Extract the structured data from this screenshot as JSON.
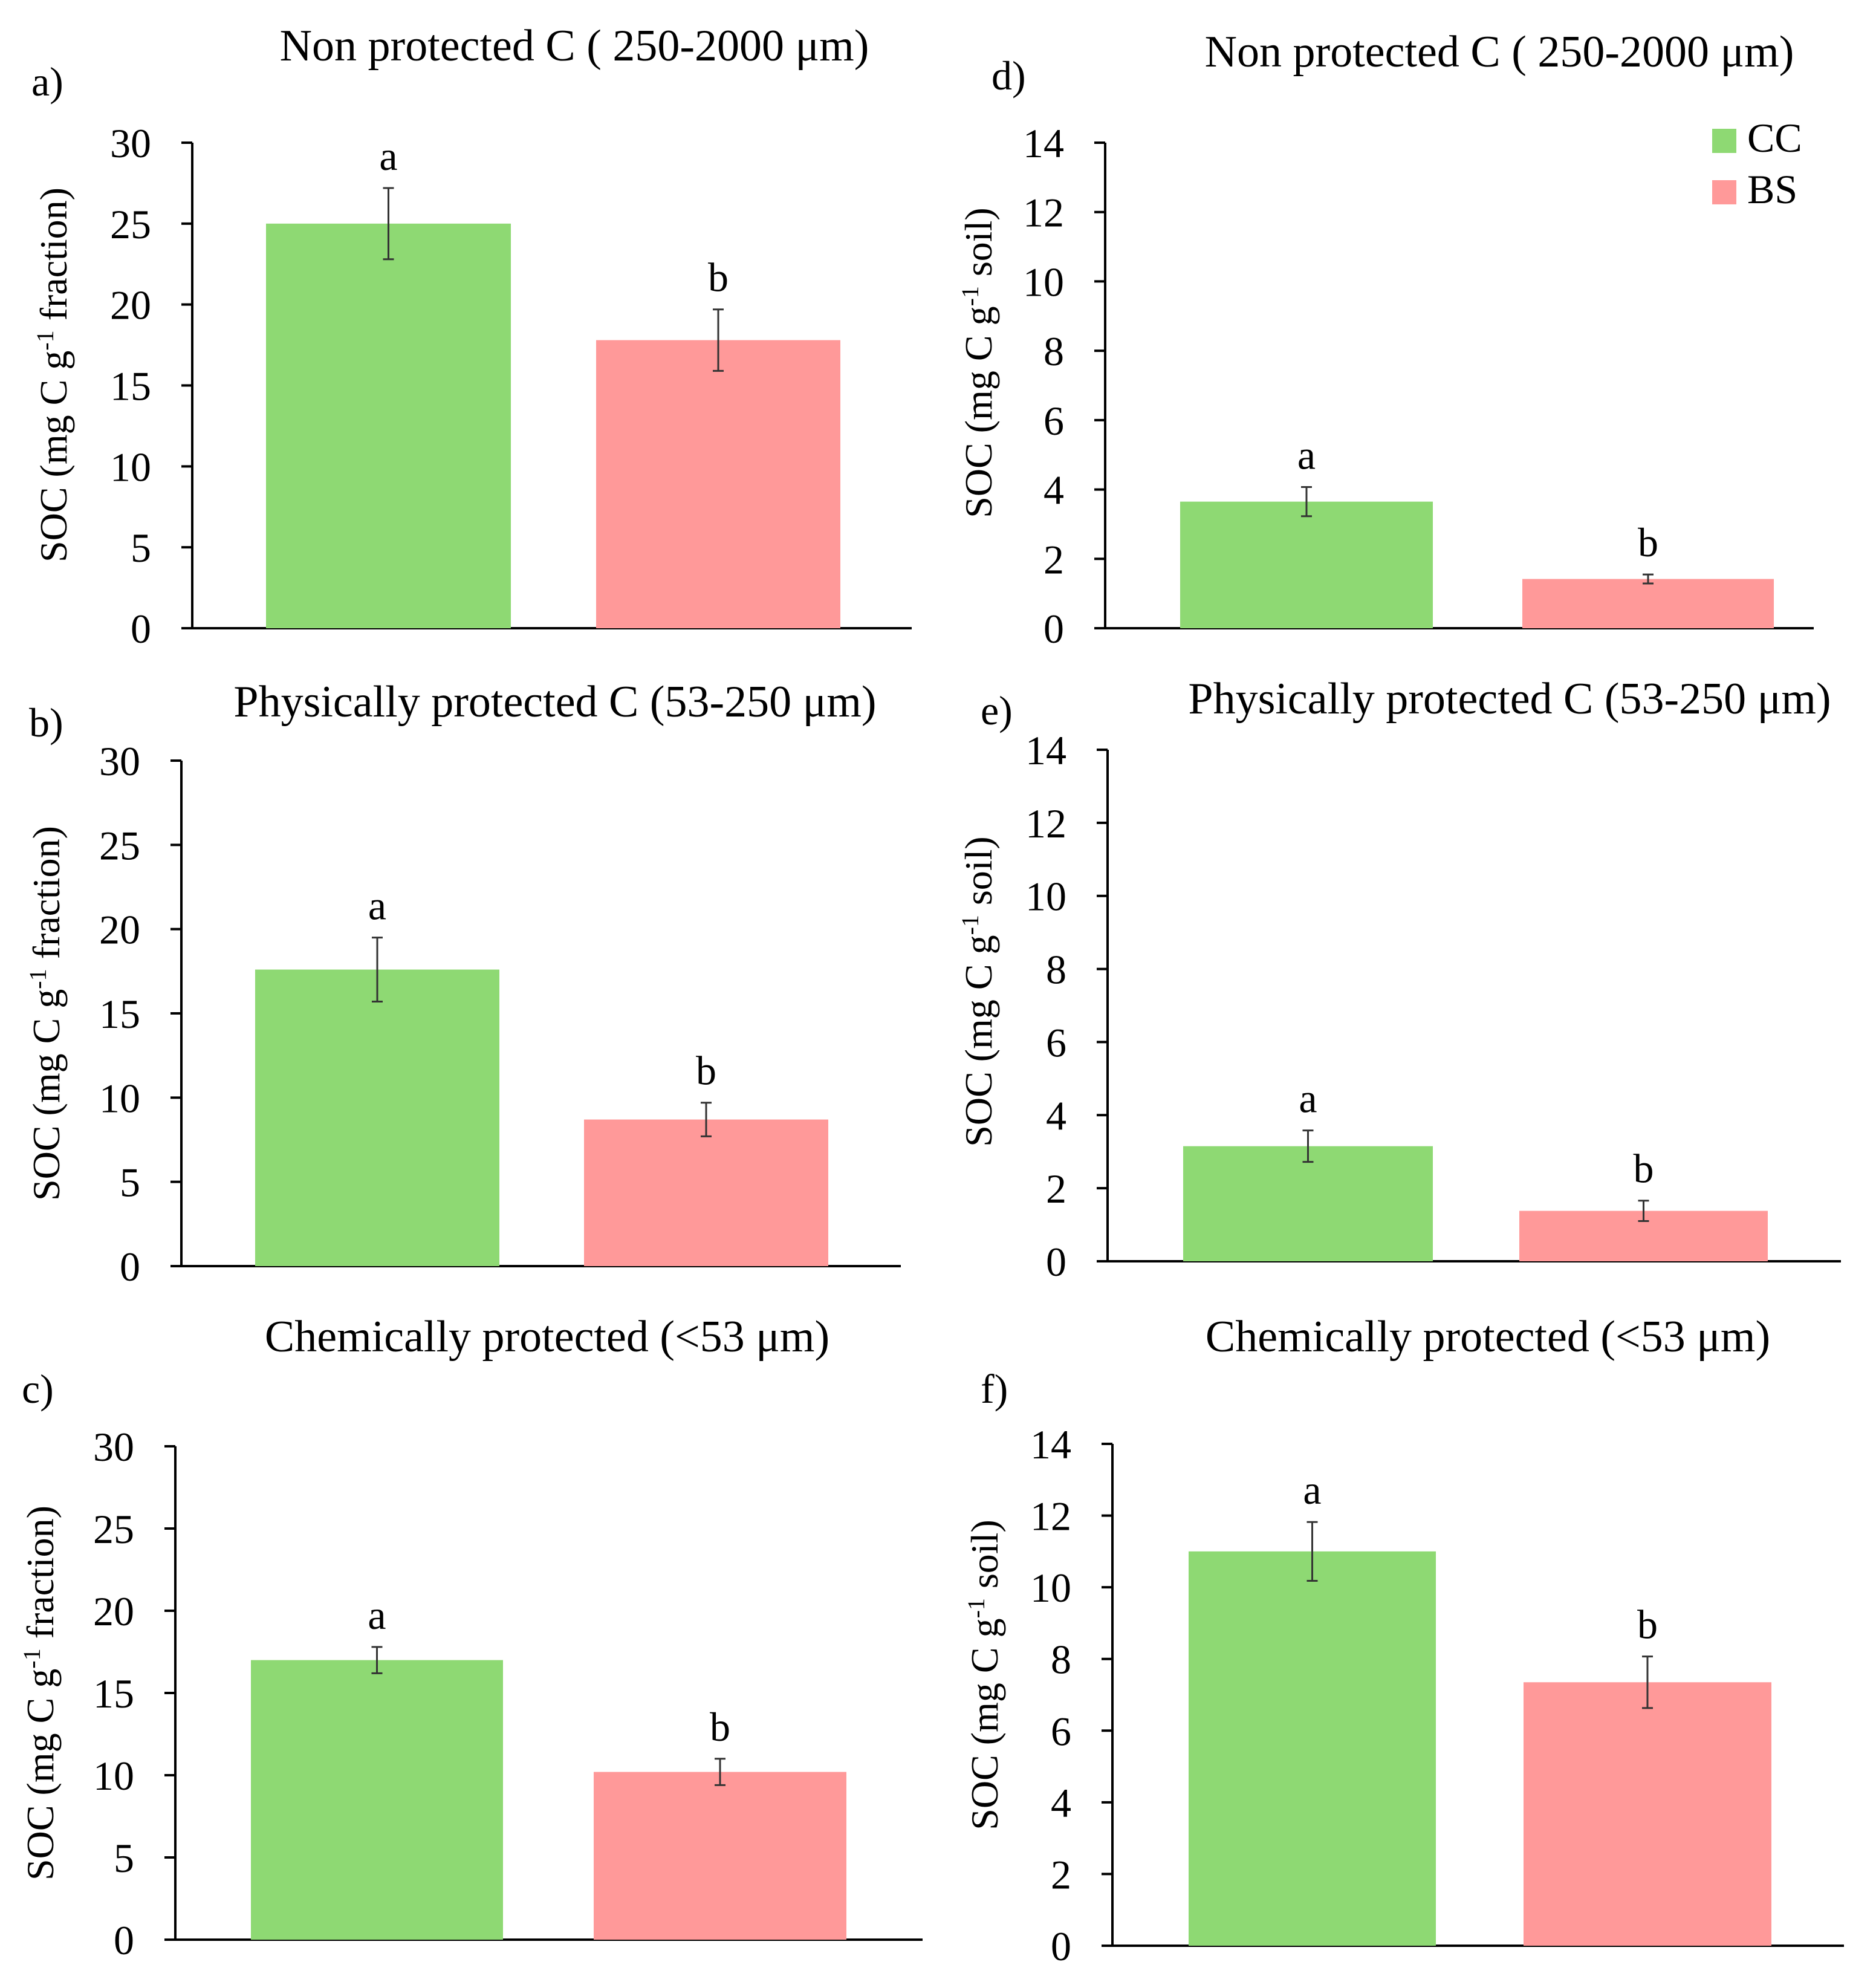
{
  "legend": {
    "position": "top-right",
    "entries": [
      {
        "label": "CC",
        "color": "#8ed973"
      },
      {
        "label": "BS",
        "color": "#ff9999"
      }
    ]
  },
  "chart_data": [
    {
      "type": "bar",
      "panel_label": "a)",
      "title": "Non protected C ( 250-2000 μm)",
      "ylabel": "SOC (mg C g-1 fraction)",
      "ylabel_parts": {
        "before": "SOC (mg C g",
        "sup": "-1",
        "after": " fraction)"
      },
      "ylim": [
        0,
        30
      ],
      "yticks": [
        "0",
        "5",
        "10",
        "15",
        "20",
        "25",
        "30"
      ],
      "categories": [
        "CC",
        "BS"
      ],
      "values": [
        25.0,
        17.8
      ],
      "errors": [
        2.2,
        1.9
      ],
      "letters": [
        "a",
        "b"
      ],
      "colors": [
        "#8ed973",
        "#ff9999"
      ]
    },
    {
      "type": "bar",
      "panel_label": "b)",
      "title": "Physically protected C (53-250 μm)",
      "ylabel": "SOC (mg C g-1 fraction)",
      "ylabel_parts": {
        "before": "SOC (mg C g",
        "sup": "-1",
        "after": " fraction)"
      },
      "ylim": [
        0,
        30
      ],
      "yticks": [
        "0",
        "5",
        "10",
        "15",
        "20",
        "25",
        "30"
      ],
      "categories": [
        "CC",
        "BS"
      ],
      "values": [
        17.6,
        8.7
      ],
      "errors": [
        1.9,
        1.0
      ],
      "letters": [
        "a",
        "b"
      ],
      "colors": [
        "#8ed973",
        "#ff9999"
      ]
    },
    {
      "type": "bar",
      "panel_label": "c)",
      "title": "Chemically protected (<53 μm)",
      "ylabel": "SOC (mg C g-1 fraction)",
      "ylabel_parts": {
        "before": "SOC (mg C g",
        "sup": "-1",
        "after": " fraction)"
      },
      "ylim": [
        0,
        30
      ],
      "yticks": [
        "0",
        "5",
        "10",
        "15",
        "20",
        "25",
        "30"
      ],
      "categories": [
        "CC",
        "BS"
      ],
      "values": [
        17.0,
        10.2
      ],
      "errors": [
        0.8,
        0.8
      ],
      "letters": [
        "a",
        "b"
      ],
      "colors": [
        "#8ed973",
        "#ff9999"
      ]
    },
    {
      "type": "bar",
      "panel_label": "d)",
      "title": "Non protected C ( 250-2000 μm)",
      "ylabel": "SOC (mg C g-1 soil)",
      "ylabel_parts": {
        "before": "SOC (mg C g",
        "sup": "-1",
        "after": " soil)"
      },
      "ylim": [
        0,
        14
      ],
      "yticks": [
        "0",
        "2",
        "4",
        "6",
        "8",
        "10",
        "12",
        "14"
      ],
      "categories": [
        "CC",
        "BS"
      ],
      "values": [
        3.65,
        1.42
      ],
      "errors": [
        0.42,
        0.13
      ],
      "letters": [
        "a",
        "b"
      ],
      "colors": [
        "#8ed973",
        "#ff9999"
      ]
    },
    {
      "type": "bar",
      "panel_label": "e)",
      "title": "Physically protected C (53-250 μm)",
      "ylabel": "SOC (mg C g-1 soil)",
      "ylabel_parts": {
        "before": "SOC (mg C g",
        "sup": "-1",
        "after": " soil)"
      },
      "ylim": [
        0,
        14
      ],
      "yticks": [
        "0",
        "2",
        "4",
        "6",
        "8",
        "10",
        "12",
        "14"
      ],
      "categories": [
        "CC",
        "BS"
      ],
      "values": [
        3.15,
        1.38
      ],
      "errors": [
        0.43,
        0.28
      ],
      "letters": [
        "a",
        "b"
      ],
      "colors": [
        "#8ed973",
        "#ff9999"
      ]
    },
    {
      "type": "bar",
      "panel_label": "f)",
      "title": "Chemically protected (<53 μm)",
      "ylabel": "SOC (mg C g-1 soil)",
      "ylabel_parts": {
        "before": "SOC (mg C g",
        "sup": "-1",
        "after": " soil)"
      },
      "ylim": [
        0,
        14
      ],
      "yticks": [
        "0",
        "2",
        "4",
        "6",
        "8",
        "10",
        "12",
        "14"
      ],
      "categories": [
        "CC",
        "BS"
      ],
      "values": [
        11.0,
        7.35
      ],
      "errors": [
        0.82,
        0.72
      ],
      "letters": [
        "a",
        "b"
      ],
      "colors": [
        "#8ed973",
        "#ff9999"
      ]
    }
  ]
}
